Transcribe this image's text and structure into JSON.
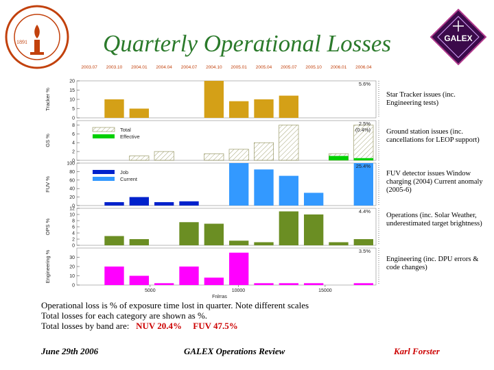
{
  "slide": {
    "title": "Quarterly Operational Losses",
    "notes": {
      "line1": "Operational loss is % of exposure time lost in quarter.   Note different scales",
      "line2": "Total losses for each category are shown as %.",
      "line3_prefix": "Total losses by band are:",
      "nuv": "NUV  20.4%",
      "fuv": "FUV  47.5%"
    },
    "footer": {
      "date": "June 29th 2006",
      "center": "GALEX Operations Review",
      "author": "Karl Forster"
    }
  },
  "logos": {
    "caltech": {
      "year": "1891"
    },
    "galex": {
      "text": "GALEX"
    }
  },
  "colors": {
    "tracker": "#d4a017",
    "effective": "#00d000",
    "fuv_dark": "#0022cc",
    "fuv_light": "#3399ff",
    "ops": "#6b8e23",
    "engineering": "#ff00ff",
    "title": "#2b7a2b",
    "red": "#cc0000"
  },
  "chart_data": {
    "type": "bar",
    "x_top_labels": [
      "2003.07",
      "2003.10",
      "2004.01",
      "2004.04",
      "2004.07",
      "2004.10",
      "2005.01",
      "2005.04",
      "2005.07",
      "2005.10",
      "2006.01",
      "2006.04"
    ],
    "x_ticks": [
      "5000",
      "10000",
      "15000"
    ],
    "xlabel": "Fnlrras",
    "panels": [
      {
        "id": "tracker",
        "ylabel": "Tracker %",
        "yticks": [
          "0",
          "5",
          "10",
          "15",
          "20"
        ],
        "ylim": [
          0,
          20
        ],
        "total_label": "5.6%",
        "series": [
          {
            "name": "",
            "values": [
              0,
              10,
              5,
              0,
              0,
              20,
              9,
              10,
              12,
              0,
              0,
              0
            ]
          }
        ],
        "category_label": "Star Tracker issues (inc. Engineering tests)"
      },
      {
        "id": "ground",
        "ylabel": "GS %",
        "yticks": [
          "0",
          "2",
          "4",
          "6",
          "8"
        ],
        "ylim": [
          0,
          9
        ],
        "total_label": "2.5%",
        "sub_label": "(0.4%)",
        "legend": [
          "Total",
          "Effective"
        ],
        "series": [
          {
            "name": "Total",
            "values": [
              0,
              0,
              1,
              2,
              0,
              1.5,
              2.5,
              4,
              8,
              0,
              1.5,
              8
            ]
          },
          {
            "name": "Effective",
            "values": [
              0,
              0,
              0,
              0,
              0,
              0,
              0,
              0,
              0,
              0,
              1,
              0.5
            ]
          }
        ],
        "category_label": "Ground station issues (inc. cancellations for LEOP support)"
      },
      {
        "id": "fuv",
        "ylabel": "FUV %",
        "yticks": [
          "0",
          "20",
          "40",
          "60",
          "80",
          "100"
        ],
        "ylim": [
          0,
          100
        ],
        "total_label": "25.4%",
        "legend": [
          "Job",
          "Current"
        ],
        "series": [
          {
            "name": "Job",
            "values": [
              0,
              8,
              20,
              8,
              10,
              0,
              0,
              0,
              0,
              0,
              0,
              0
            ]
          },
          {
            "name": "Current",
            "values": [
              0,
              0,
              0,
              0,
              0,
              0,
              100,
              85,
              70,
              30,
              0,
              100
            ]
          }
        ],
        "category_label": "FUV detector issues Window charging (2004) Current anomaly (2005-6)"
      },
      {
        "id": "ops",
        "ylabel": "OPS %",
        "yticks": [
          "0",
          "2",
          "4",
          "6",
          "8",
          "10",
          "12"
        ],
        "ylim": [
          0,
          12
        ],
        "total_label": "4.4%",
        "series": [
          {
            "name": "",
            "values": [
              0,
              3,
              2,
              0,
              7.5,
              7,
              1.5,
              1,
              11,
              10,
              1,
              2
            ]
          }
        ],
        "category_label": "Operations (inc. Solar Weather, underestimated target brightness)"
      },
      {
        "id": "engineering",
        "ylabel": "Engineering %",
        "yticks": [
          "0",
          "10",
          "20",
          "30"
        ],
        "ylim": [
          0,
          40
        ],
        "total_label": "3.5%",
        "series": [
          {
            "name": "",
            "values": [
              0,
              20,
              10,
              2,
              20,
              8,
              35,
              2,
              2,
              2,
              0,
              2
            ]
          }
        ],
        "category_label": "Engineering (inc. DPU errors & code changes)"
      }
    ]
  }
}
